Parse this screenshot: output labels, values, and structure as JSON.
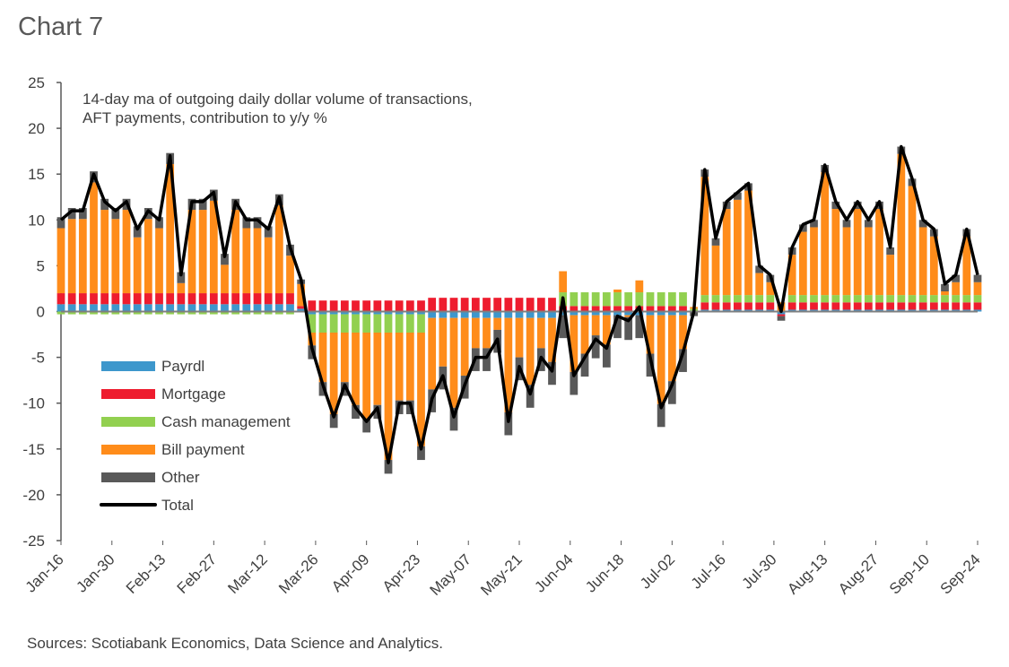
{
  "title": "Chart 7",
  "source": "Sources: Scotiabank Economics, Data Science and Analytics.",
  "chart_data": {
    "type": "bar",
    "stacked": true,
    "title": "",
    "annotation": [
      "14-day ma of outgoing daily dollar volume of transactions,",
      "AFT payments, contribution to y/y %"
    ],
    "xlabel": "",
    "ylabel": "",
    "ylim": [
      -25,
      25
    ],
    "yticks": [
      25,
      20,
      15,
      10,
      5,
      0,
      -5,
      -10,
      -15,
      -20,
      -25
    ],
    "xticks": [
      "Jan-16",
      "Jan-30",
      "Feb-13",
      "Feb-27",
      "Mar-12",
      "Mar-26",
      "Apr-09",
      "Apr-23",
      "May-07",
      "May-21",
      "Jun-04",
      "Jun-18",
      "Jul-02",
      "Jul-16",
      "Jul-30",
      "Aug-13",
      "Aug-27",
      "Sep-10",
      "Sep-24"
    ],
    "grid": false,
    "legend_position": "left-middle",
    "x": [
      "Jan-16",
      "Jan-19",
      "Jan-22",
      "Jan-25",
      "Jan-28",
      "Jan-31",
      "Feb-03",
      "Feb-06",
      "Feb-09",
      "Feb-12",
      "Feb-15",
      "Feb-18",
      "Feb-21",
      "Feb-24",
      "Feb-27",
      "Mar-01",
      "Mar-04",
      "Mar-07",
      "Mar-10",
      "Mar-13",
      "Mar-16",
      "Mar-19",
      "Mar-22",
      "Mar-25",
      "Mar-28",
      "Mar-31",
      "Apr-03",
      "Apr-06",
      "Apr-09",
      "Apr-12",
      "Apr-15",
      "Apr-18",
      "Apr-21",
      "Apr-24",
      "Apr-27",
      "Apr-30",
      "May-03",
      "May-06",
      "May-09",
      "May-12",
      "May-15",
      "May-18",
      "May-21",
      "May-24",
      "May-27",
      "May-30",
      "Jun-02",
      "Jun-05",
      "Jun-08",
      "Jun-11",
      "Jun-14",
      "Jun-17",
      "Jun-20",
      "Jun-23",
      "Jun-26",
      "Jun-29",
      "Jul-02",
      "Jul-05",
      "Jul-08",
      "Jul-11",
      "Jul-14",
      "Jul-17",
      "Jul-20",
      "Jul-23",
      "Jul-26",
      "Jul-29",
      "Aug-01",
      "Aug-04",
      "Aug-07",
      "Aug-10",
      "Aug-13",
      "Aug-16",
      "Aug-19",
      "Aug-22",
      "Aug-25",
      "Aug-28",
      "Aug-31",
      "Sep-03",
      "Sep-06",
      "Sep-09",
      "Sep-12",
      "Sep-15",
      "Sep-18",
      "Sep-21",
      "Sep-24"
    ],
    "series": [
      {
        "name": "Payroll",
        "color": "#3d97cc",
        "values": [
          0.8,
          0.8,
          0.8,
          0.8,
          0.8,
          0.8,
          0.8,
          0.8,
          0.8,
          0.8,
          0.8,
          0.8,
          0.8,
          0.8,
          0.8,
          0.8,
          0.8,
          0.8,
          0.8,
          0.8,
          0.8,
          0.8,
          0.3,
          -0.3,
          -0.3,
          -0.3,
          -0.3,
          -0.3,
          -0.3,
          -0.3,
          -0.3,
          -0.3,
          -0.3,
          -0.3,
          -0.7,
          -0.7,
          -0.7,
          -0.7,
          -0.7,
          -0.7,
          -0.7,
          -0.7,
          -0.7,
          -0.7,
          -0.7,
          -0.7,
          -0.4,
          -0.4,
          -0.4,
          -0.4,
          -0.4,
          -0.4,
          -0.4,
          -0.4,
          -0.4,
          -0.4,
          -0.4,
          -0.4,
          0,
          0.2,
          0.2,
          0.2,
          0.2,
          0.2,
          0.2,
          0.2,
          -0.3,
          0.2,
          0.2,
          0.2,
          0.2,
          0.2,
          0.2,
          0.2,
          0.2,
          0.2,
          0.2,
          0.2,
          0.2,
          0.2,
          0.2,
          0.2,
          0.2,
          0.2,
          0.2
        ]
      },
      {
        "name": "Mortgage",
        "color": "#ee1c2e",
        "values": [
          1.2,
          1.2,
          1.2,
          1.2,
          1.2,
          1.2,
          1.2,
          1.2,
          1.2,
          1.2,
          1.2,
          1.2,
          1.2,
          1.2,
          1.2,
          1.2,
          1.2,
          1.2,
          1.2,
          1.2,
          1.2,
          1.2,
          0.3,
          1.2,
          1.2,
          1.2,
          1.2,
          1.2,
          1.2,
          1.2,
          1.2,
          1.2,
          1.2,
          1.2,
          1.5,
          1.5,
          1.5,
          1.5,
          1.5,
          1.5,
          1.5,
          1.5,
          1.5,
          1.5,
          1.5,
          1.5,
          0.6,
          0.6,
          0.6,
          0.6,
          0.6,
          0.6,
          0.6,
          0.6,
          0.6,
          0.6,
          0.6,
          0.6,
          0,
          0.8,
          0.8,
          0.8,
          0.8,
          0.8,
          0.8,
          0.8,
          -0.2,
          0.8,
          0.8,
          0.8,
          0.8,
          0.8,
          0.8,
          0.8,
          0.8,
          0.8,
          0.8,
          0.8,
          0.8,
          0.8,
          0.8,
          0.8,
          0.8,
          0.8,
          0.8
        ]
      },
      {
        "name": "Cash management",
        "color": "#92d050",
        "values": [
          -0.3,
          -0.3,
          -0.3,
          -0.3,
          -0.3,
          -0.3,
          -0.3,
          -0.3,
          -0.3,
          -0.3,
          -0.3,
          -0.3,
          -0.3,
          -0.3,
          -0.3,
          -0.3,
          -0.3,
          -0.3,
          -0.3,
          -0.3,
          -0.3,
          -0.3,
          0,
          -2,
          -2,
          -2,
          -2,
          -2,
          -2,
          -2,
          -2,
          -2,
          -2,
          -2,
          0,
          0,
          0,
          0,
          0,
          0,
          0,
          0,
          0,
          0,
          0,
          0,
          1.5,
          1.5,
          1.5,
          1.5,
          1.5,
          1.5,
          1.5,
          1.5,
          1.5,
          1.5,
          1.5,
          1.5,
          0.3,
          0.8,
          0.8,
          0.8,
          0.8,
          0.8,
          0.8,
          0.8,
          0,
          0.8,
          0.8,
          0.8,
          0.8,
          0.8,
          0.8,
          0.8,
          0.8,
          0.8,
          0.8,
          0.8,
          0.8,
          0.8,
          0.8,
          0.8,
          0.8,
          0.8,
          0.8
        ]
      },
      {
        "name": "Bill payment",
        "color": "#ff8c1a",
        "values": [
          7.1,
          8.1,
          8.1,
          12.1,
          9.1,
          8.1,
          9.1,
          6.1,
          8.1,
          7.1,
          14.1,
          1.1,
          9.1,
          9.1,
          10.1,
          3.1,
          9.1,
          7.1,
          7.1,
          6.1,
          9.6,
          4.1,
          2.4,
          -1.4,
          -5.4,
          -8.9,
          -5.4,
          -7.9,
          -9.4,
          -7.9,
          -13.9,
          -7.4,
          -7.4,
          -12.4,
          -7.8,
          -5.3,
          -9.8,
          -6.3,
          -3.3,
          -3.3,
          -1.3,
          -10.3,
          -4.3,
          -7.3,
          -3.3,
          -4.8,
          2.3,
          -6.2,
          -4.2,
          -2.2,
          -3.2,
          0.3,
          -0.2,
          1.3,
          -4.2,
          -9.7,
          -7.2,
          -3.7,
          0.2,
          12.9,
          5.4,
          9.4,
          10.4,
          11.4,
          2.4,
          1.4,
          1.0,
          4.4,
          6.9,
          7.4,
          13.4,
          9.4,
          7.4,
          9.4,
          7.4,
          9.4,
          4.4,
          15.4,
          11.9,
          7.4,
          6.4,
          0.4,
          1.4,
          6.4,
          1.4
        ]
      },
      {
        "name": "Other",
        "color": "#595959",
        "values": [
          1.2,
          1.2,
          1.2,
          1.2,
          1.2,
          1.2,
          1.2,
          1.2,
          1.2,
          1.2,
          1.2,
          1.2,
          1.2,
          1.2,
          1.2,
          1.2,
          1.2,
          1.2,
          1.2,
          1.2,
          1.2,
          1.2,
          0.5,
          -1.5,
          -1.5,
          -1.5,
          -1.5,
          -1.5,
          -1.5,
          -1.5,
          -1.5,
          -1.5,
          -1.5,
          -1.5,
          -2.5,
          -2.5,
          -2.5,
          -2.5,
          -2.5,
          -2.5,
          -2.5,
          -2.5,
          -2.5,
          -2.5,
          -2.5,
          -2.5,
          -2.5,
          -2.5,
          -2.5,
          -2.5,
          -2.5,
          -2.5,
          -2.5,
          -2.5,
          -2.5,
          -2.5,
          -2.5,
          -2.5,
          -0.5,
          0.8,
          0.8,
          0.8,
          0.8,
          0.8,
          0.8,
          0.8,
          -0.5,
          0.8,
          0.8,
          0.8,
          0.8,
          0.8,
          0.8,
          0.8,
          0.8,
          0.8,
          0.8,
          0.8,
          0.8,
          0.8,
          0.8,
          0.8,
          0.8,
          0.8,
          0.8
        ]
      }
    ],
    "total": {
      "name": "Total",
      "color": "#000000",
      "values": [
        10,
        11,
        11,
        15,
        12,
        11,
        12,
        9,
        11,
        10,
        17,
        4,
        12,
        12,
        13,
        6,
        12,
        10,
        10,
        9,
        12.5,
        7,
        3.5,
        -4,
        -8,
        -11.5,
        -8,
        -10.5,
        -12,
        -10.5,
        -16.5,
        -10,
        -10,
        -15,
        -9.5,
        -7,
        -11.5,
        -8,
        -5,
        -5,
        -3,
        -12,
        -6,
        -9,
        -5,
        -6.5,
        1.5,
        -7,
        -5,
        -3,
        -4,
        -0.5,
        -1,
        0.5,
        -5,
        -10.5,
        -8,
        -4.5,
        0,
        15.5,
        8,
        12,
        13,
        14,
        5,
        4,
        0,
        7,
        9.5,
        10,
        16,
        12,
        10,
        12,
        10,
        12,
        7,
        18,
        14.5,
        10,
        9,
        3,
        4,
        9,
        4
      ]
    },
    "legend": [
      "Payrdl",
      "Mortgage",
      "Cash management",
      "Bill payment",
      "Other",
      "Total"
    ]
  }
}
